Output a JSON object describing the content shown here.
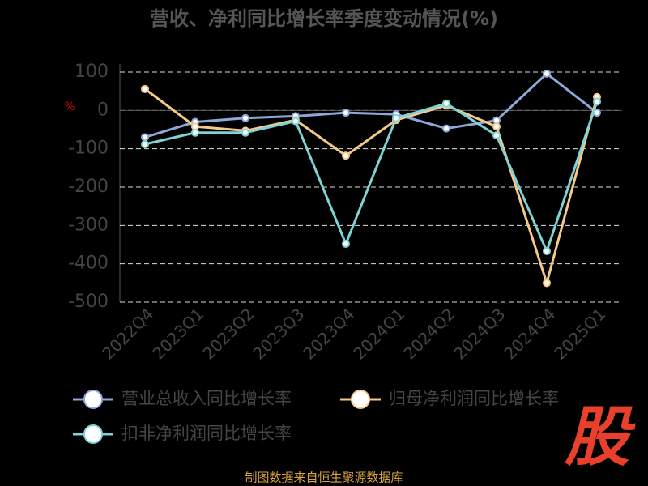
{
  "chart_data": {
    "type": "line",
    "title": "营收、净利同比增长率季度变动情况(%)",
    "y_label": "%",
    "categories": [
      "2022Q4",
      "2023Q1",
      "2023Q2",
      "2023Q3",
      "2023Q4",
      "2024Q1",
      "2024Q2",
      "2024Q3",
      "2024Q4",
      "2025Q1"
    ],
    "series": [
      {
        "name": "营业总收入同比增长率",
        "color": "#8ea6d8",
        "values": [
          -70,
          -30,
          -20,
          -15,
          -6,
          -10,
          -47,
          -26,
          96,
          -6
        ]
      },
      {
        "name": "归母净利润同比增长率",
        "color": "#f5c98a",
        "values": [
          56,
          -42,
          -53,
          -25,
          -118,
          -25,
          13,
          -42,
          -450,
          35
        ]
      },
      {
        "name": "扣非净利润同比增长率",
        "color": "#7fd3d6",
        "values": [
          -88,
          -58,
          -58,
          -28,
          -348,
          -20,
          18,
          -65,
          -367,
          23
        ]
      }
    ],
    "ylim": [
      -500,
      100
    ],
    "yticks": [
      -500,
      -400,
      -300,
      -200,
      -100,
      0,
      100
    ],
    "grid": true,
    "source": "制图数据来自恒生聚源数据库",
    "watermark": "股"
  }
}
